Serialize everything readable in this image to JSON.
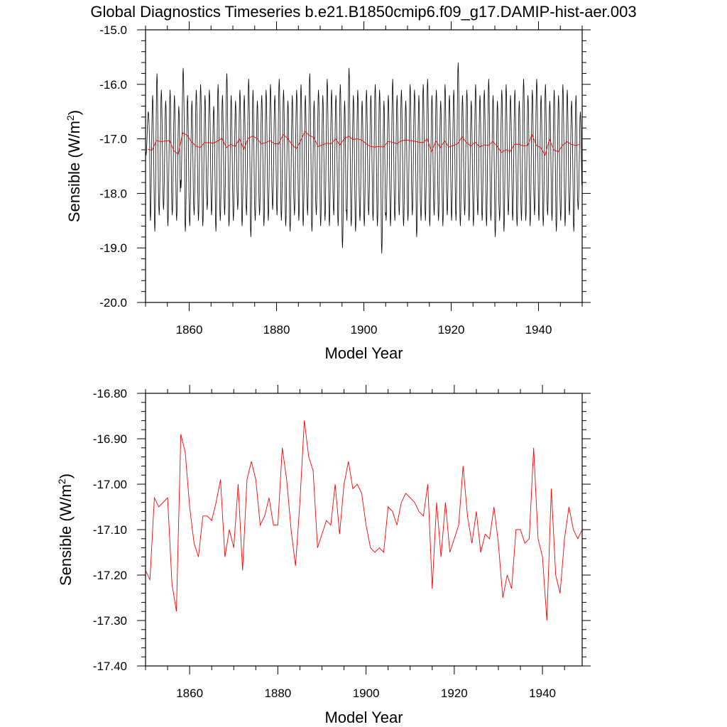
{
  "figure": {
    "title": "Global Diagnostics Timeseries b.e21.B1850cmip6.f09_g17.DAMIP-hist-aer.003"
  },
  "colors": {
    "monthly": "#000000",
    "annual": "#ff0000",
    "axes": "#000000"
  },
  "chart_data": [
    {
      "type": "line",
      "title": "Global Diagnostics Timeseries b.e21.B1850cmip6.f09_g17.DAMIP-hist-aer.003",
      "xlabel": "Model Year",
      "ylabel": "Sensible (W/m",
      "ylabel_sup": "2",
      "ylabel_tail": ")",
      "xlim": [
        1850,
        1950
      ],
      "ylim": [
        -20.0,
        -15.0
      ],
      "xticks": [
        1860,
        1880,
        1900,
        1920,
        1940
      ],
      "xtick_labels": [
        "1860",
        "1880",
        "1900",
        "1920",
        "1940"
      ],
      "yticks": [
        -20.0,
        -19.0,
        -18.0,
        -17.0,
        -16.0,
        -15.0
      ],
      "ytick_labels": [
        "-20.0",
        "-19.0",
        "-18.0",
        "-17.0",
        "-16.0",
        "-15.0"
      ],
      "grid": false,
      "series": [
        {
          "role": "monthly",
          "description": "monthly global mean, seasonal cycle: one annual maximum near -16.1 to -16.4 and one annual minimum near -18.3 to -18.6 each year",
          "x_start": 1850.04,
          "x_step": 0.0833,
          "annual_max": [
            -16.5,
            -16.2,
            -15.8,
            -16.1,
            -16.3,
            -16.1,
            -16.2,
            -16.4,
            -15.7,
            -16.2,
            -16.3,
            -16.1,
            -16.0,
            -16.2,
            -16.1,
            -16.4,
            -16.0,
            -16.2,
            -15.8,
            -16.2,
            -16.3,
            -16.1,
            -16.2,
            -15.9,
            -16.1,
            -16.3,
            -16.2,
            -16.1,
            -16.0,
            -16.2,
            -15.9,
            -16.1,
            -16.3,
            -16.2,
            -16.1,
            -16.0,
            -16.2,
            -15.8,
            -16.3,
            -16.1,
            -16.2,
            -15.9,
            -16.1,
            -16.2,
            -16.0,
            -16.3,
            -15.7,
            -16.2,
            -16.1,
            -16.3,
            -16.1,
            -16.2,
            -16.0,
            -16.1,
            -16.3,
            -16.2,
            -15.9,
            -16.2,
            -16.1,
            -16.3,
            -16.0,
            -16.1,
            -16.2,
            -16.0,
            -15.9,
            -16.2,
            -16.1,
            -16.3,
            -16.0,
            -16.2,
            -16.1,
            -15.6,
            -16.2,
            -16.1,
            -16.3,
            -16.0,
            -16.2,
            -16.1,
            -15.9,
            -16.2,
            -16.3,
            -16.1,
            -16.0,
            -16.2,
            -16.1,
            -16.3,
            -15.9,
            -16.2,
            -16.1,
            -15.9,
            -16.2,
            -16.0,
            -16.3,
            -16.1,
            -16.2,
            -16.0,
            -16.1,
            -16.3,
            -16.2,
            -16.5
          ],
          "annual_min": [
            -17.3,
            -18.5,
            -18.7,
            -18.4,
            -18.3,
            -18.6,
            -18.4,
            -18.5,
            -17.9,
            -18.7,
            -18.6,
            -18.4,
            -18.5,
            -18.6,
            -18.3,
            -18.4,
            -18.7,
            -18.5,
            -18.4,
            -18.6,
            -18.5,
            -18.3,
            -18.6,
            -18.4,
            -18.8,
            -18.5,
            -18.4,
            -18.6,
            -18.5,
            -18.3,
            -18.4,
            -18.5,
            -18.6,
            -18.7,
            -18.4,
            -18.5,
            -18.6,
            -18.4,
            -18.7,
            -18.4,
            -18.6,
            -18.5,
            -18.6,
            -18.4,
            -18.6,
            -19.0,
            -18.5,
            -18.6,
            -18.7,
            -18.5,
            -18.6,
            -18.4,
            -18.5,
            -18.6,
            -19.1,
            -18.5,
            -18.6,
            -18.5,
            -18.4,
            -18.6,
            -18.5,
            -18.4,
            -18.8,
            -18.5,
            -18.5,
            -18.6,
            -18.4,
            -18.5,
            -18.6,
            -18.4,
            -18.5,
            -18.5,
            -18.6,
            -18.4,
            -18.5,
            -18.6,
            -18.4,
            -18.5,
            -18.6,
            -18.5,
            -18.8,
            -18.5,
            -18.7,
            -18.4,
            -18.5,
            -18.6,
            -18.5,
            -18.5,
            -18.6,
            -18.4,
            -18.5,
            -18.6,
            -18.4,
            -18.5,
            -18.7,
            -18.5,
            -18.6,
            -18.4,
            -18.7,
            -18.3
          ]
        },
        {
          "role": "annual",
          "x_start": 1850.5,
          "x_step": 1,
          "values": [
            -17.19,
            -17.21,
            -17.03,
            -17.05,
            -17.04,
            -17.03,
            -17.22,
            -17.28,
            -16.89,
            -16.93,
            -17.05,
            -17.13,
            -17.16,
            -17.07,
            -17.07,
            -17.08,
            -17.04,
            -16.99,
            -17.16,
            -17.1,
            -17.14,
            -17.0,
            -17.19,
            -16.99,
            -16.95,
            -16.99,
            -17.09,
            -17.07,
            -17.03,
            -17.09,
            -17.09,
            -16.92,
            -16.99,
            -17.1,
            -17.18,
            -17.04,
            -16.86,
            -16.94,
            -16.97,
            -17.14,
            -17.11,
            -17.08,
            -17.09,
            -17.0,
            -17.11,
            -17.0,
            -16.95,
            -17.01,
            -17.0,
            -17.02,
            -17.09,
            -17.14,
            -17.15,
            -17.14,
            -17.15,
            -17.05,
            -17.06,
            -17.09,
            -17.04,
            -17.02,
            -17.03,
            -17.04,
            -17.06,
            -17.07,
            -17.0,
            -17.23,
            -17.04,
            -17.16,
            -17.04,
            -17.15,
            -17.12,
            -17.09,
            -16.96,
            -17.07,
            -17.13,
            -17.06,
            -17.15,
            -17.11,
            -17.12,
            -17.05,
            -17.13,
            -17.25,
            -17.2,
            -17.23,
            -17.1,
            -17.1,
            -17.13,
            -17.12,
            -16.92,
            -17.12,
            -17.16,
            -17.3,
            -17.01,
            -17.2,
            -17.24,
            -17.12,
            -17.05,
            -17.1,
            -17.12,
            -17.1
          ]
        }
      ]
    },
    {
      "type": "line",
      "xlabel": "Model Year",
      "ylabel": "Sensible (W/m",
      "ylabel_sup": "2",
      "ylabel_tail": ")",
      "xlim": [
        1850,
        1949
      ],
      "ylim": [
        -17.4,
        -16.8
      ],
      "xticks": [
        1860,
        1880,
        1900,
        1920,
        1940
      ],
      "xtick_labels": [
        "1860",
        "1880",
        "1900",
        "1920",
        "1940"
      ],
      "yticks": [
        -17.4,
        -17.3,
        -17.2,
        -17.1,
        -17.0,
        -16.9,
        -16.8
      ],
      "ytick_labels": [
        "-17.40",
        "-17.30",
        "-17.20",
        "-17.10",
        "-17.00",
        "-16.90",
        "-16.80"
      ],
      "grid": false,
      "series": [
        {
          "role": "annual",
          "x_start": 1850,
          "x_step": 1,
          "values": [
            -17.19,
            -17.21,
            -17.03,
            -17.05,
            -17.04,
            -17.03,
            -17.22,
            -17.28,
            -16.89,
            -16.93,
            -17.05,
            -17.13,
            -17.16,
            -17.07,
            -17.07,
            -17.08,
            -17.04,
            -16.99,
            -17.16,
            -17.1,
            -17.14,
            -17.0,
            -17.19,
            -16.99,
            -16.95,
            -16.99,
            -17.09,
            -17.07,
            -17.03,
            -17.09,
            -17.09,
            -16.92,
            -16.99,
            -17.1,
            -17.18,
            -17.04,
            -16.86,
            -16.94,
            -16.97,
            -17.14,
            -17.11,
            -17.08,
            -17.09,
            -17.0,
            -17.11,
            -17.0,
            -16.95,
            -17.01,
            -17.0,
            -17.02,
            -17.09,
            -17.14,
            -17.15,
            -17.14,
            -17.15,
            -17.05,
            -17.06,
            -17.09,
            -17.04,
            -17.02,
            -17.03,
            -17.04,
            -17.06,
            -17.07,
            -17.0,
            -17.23,
            -17.04,
            -17.16,
            -17.04,
            -17.15,
            -17.12,
            -17.09,
            -16.96,
            -17.07,
            -17.13,
            -17.06,
            -17.15,
            -17.11,
            -17.12,
            -17.05,
            -17.13,
            -17.25,
            -17.2,
            -17.23,
            -17.1,
            -17.1,
            -17.13,
            -17.12,
            -16.92,
            -17.12,
            -17.16,
            -17.3,
            -17.01,
            -17.2,
            -17.24,
            -17.12,
            -17.05,
            -17.1,
            -17.12,
            -17.1
          ]
        }
      ]
    }
  ]
}
